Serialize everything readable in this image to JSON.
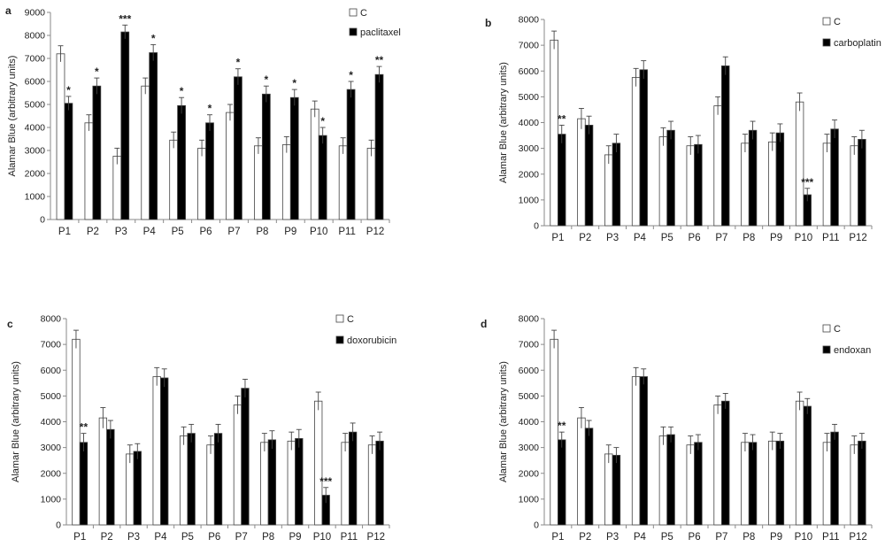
{
  "figure": {
    "colors": {
      "control": "#ffffff",
      "treated": "#000000",
      "axis": "#8a8a8a",
      "edge": "#444444"
    },
    "bar_legend_labels": [
      "C"
    ]
  },
  "chart_data": [
    {
      "panel": "a",
      "type": "bar",
      "ylabel": "Alamar Blue (arbitrary units)",
      "ylim": [
        0,
        9000
      ],
      "yticks": [
        0,
        1000,
        2000,
        3000,
        4000,
        5000,
        6000,
        7000,
        8000,
        9000
      ],
      "categories": [
        "P1",
        "P2",
        "P3",
        "P4",
        "P5",
        "P6",
        "P7",
        "P8",
        "P9",
        "P10",
        "P11",
        "P12"
      ],
      "legend_position": "top-right",
      "series": [
        {
          "name": "C",
          "color": "#ffffff",
          "values": [
            7200,
            4200,
            2750,
            5800,
            3450,
            3100,
            4650,
            3200,
            3250,
            4800,
            3200,
            3100
          ],
          "errors": [
            350,
            350,
            350,
            350,
            350,
            350,
            350,
            350,
            350,
            350,
            350,
            350
          ]
        },
        {
          "name": "paclitaxel",
          "color": "#000000",
          "values": [
            5050,
            5800,
            8150,
            7250,
            4950,
            4200,
            6200,
            5450,
            5300,
            3650,
            5650,
            6300
          ],
          "errors": [
            300,
            350,
            300,
            350,
            350,
            350,
            350,
            350,
            350,
            350,
            350,
            350
          ]
        }
      ],
      "significance": [
        "*",
        "*",
        "***",
        "*",
        "*",
        "*",
        "*",
        "*",
        "*",
        "*",
        "*",
        "**"
      ]
    },
    {
      "panel": "b",
      "type": "bar",
      "ylabel": "Alamar Blue (arbitrary units)",
      "ylim": [
        0,
        8000
      ],
      "yticks": [
        0,
        1000,
        2000,
        3000,
        4000,
        5000,
        6000,
        7000,
        8000
      ],
      "categories": [
        "P1",
        "P2",
        "P3",
        "P4",
        "P5",
        "P6",
        "P7",
        "P8",
        "P9",
        "P10",
        "P11",
        "P12"
      ],
      "legend_position": "top-right",
      "series": [
        {
          "name": "C",
          "color": "#ffffff",
          "values": [
            7200,
            4150,
            2750,
            5750,
            3450,
            3100,
            4650,
            3200,
            3250,
            4800,
            3200,
            3100
          ],
          "errors": [
            350,
            400,
            350,
            350,
            350,
            350,
            350,
            350,
            350,
            350,
            350,
            350
          ]
        },
        {
          "name": "carboplatin",
          "color": "#000000",
          "values": [
            3550,
            3900,
            3200,
            6050,
            3700,
            3150,
            6200,
            3700,
            3600,
            1200,
            3750,
            3350
          ],
          "errors": [
            350,
            350,
            350,
            350,
            350,
            350,
            350,
            350,
            350,
            250,
            350,
            350
          ]
        }
      ],
      "significance": [
        "**",
        "",
        "",
        "",
        "",
        "",
        "",
        "",
        "",
        "***",
        "",
        ""
      ]
    },
    {
      "panel": "c",
      "type": "bar",
      "ylabel": "Alamar Blue (arbitrary units)",
      "ylim": [
        0,
        8000
      ],
      "yticks": [
        0,
        1000,
        2000,
        3000,
        4000,
        5000,
        6000,
        7000,
        8000
      ],
      "categories": [
        "P1",
        "P2",
        "P3",
        "P4",
        "P5",
        "P6",
        "P7",
        "P8",
        "P9",
        "P10",
        "P11",
        "P12"
      ],
      "legend_position": "top-right",
      "series": [
        {
          "name": "C",
          "color": "#ffffff",
          "values": [
            7200,
            4150,
            2750,
            5750,
            3450,
            3100,
            4650,
            3200,
            3250,
            4800,
            3200,
            3100
          ],
          "errors": [
            350,
            400,
            350,
            350,
            350,
            350,
            350,
            350,
            350,
            350,
            350,
            350
          ]
        },
        {
          "name": "doxorubicin",
          "color": "#000000",
          "values": [
            3200,
            3700,
            2850,
            5700,
            3550,
            3550,
            5300,
            3300,
            3350,
            1150,
            3600,
            3250
          ],
          "errors": [
            350,
            350,
            300,
            350,
            350,
            350,
            350,
            350,
            350,
            300,
            350,
            350
          ]
        }
      ],
      "significance": [
        "**",
        "",
        "",
        "",
        "",
        "",
        "",
        "",
        "",
        "***",
        "",
        ""
      ]
    },
    {
      "panel": "d",
      "type": "bar",
      "ylabel": "Alamar Blue (arbitrary units)",
      "ylim": [
        0,
        8000
      ],
      "yticks": [
        0,
        1000,
        2000,
        3000,
        4000,
        5000,
        6000,
        7000,
        8000
      ],
      "categories": [
        "P1",
        "P2",
        "P3",
        "P4",
        "P5",
        "P6",
        "P7",
        "P8",
        "P9",
        "P10",
        "P11",
        "P12"
      ],
      "legend_position": "top-right",
      "series": [
        {
          "name": "C",
          "color": "#ffffff",
          "values": [
            7200,
            4150,
            2750,
            5750,
            3450,
            3100,
            4650,
            3200,
            3250,
            4800,
            3200,
            3100
          ],
          "errors": [
            350,
            400,
            350,
            350,
            350,
            350,
            350,
            350,
            350,
            350,
            350,
            350
          ]
        },
        {
          "name": "endoxan",
          "color": "#000000",
          "values": [
            3300,
            3750,
            2700,
            5750,
            3500,
            3200,
            4800,
            3200,
            3250,
            4600,
            3600,
            3250
          ],
          "errors": [
            300,
            300,
            300,
            300,
            300,
            300,
            300,
            300,
            300,
            300,
            300,
            300
          ]
        }
      ],
      "significance": [
        "**",
        "",
        "",
        "",
        "",
        "",
        "",
        "",
        "",
        "",
        "",
        ""
      ]
    }
  ]
}
